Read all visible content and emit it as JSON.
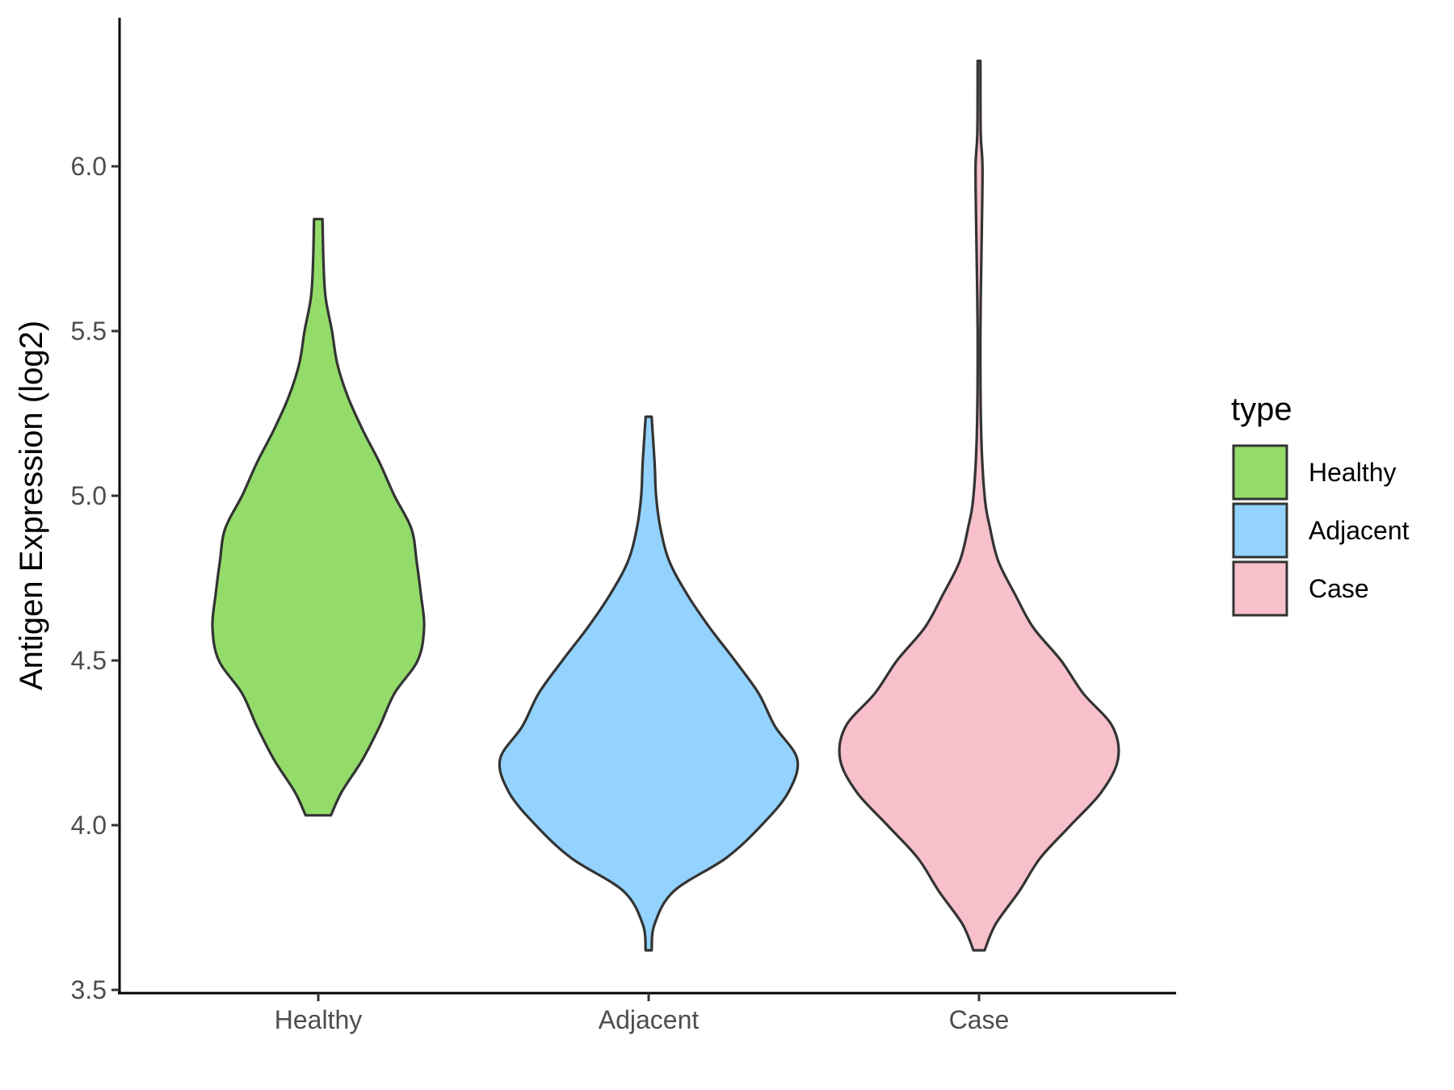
{
  "chart_data": {
    "type": "violin",
    "xlabel": "",
    "ylabel": "Antigen Expression (log2)",
    "ylim": [
      3.5,
      6.35
    ],
    "yticks": [
      "3.5",
      "4.0",
      "4.5",
      "5.0",
      "5.5",
      "6.0"
    ],
    "categories": [
      "Healthy",
      "Adjacent",
      "Case"
    ],
    "grid": false,
    "legend": {
      "title": "type",
      "position": "right",
      "entries": [
        {
          "label": "Healthy",
          "color": "#93dc6a"
        },
        {
          "label": "Adjacent",
          "color": "#93d3fe"
        },
        {
          "label": "Case",
          "color": "#f7c0cb"
        }
      ]
    },
    "series": [
      {
        "category": "Healthy",
        "color": "#93dc6a",
        "profile": [
          [
            4.03,
            0.12
          ],
          [
            4.1,
            0.22
          ],
          [
            4.2,
            0.42
          ],
          [
            4.3,
            0.58
          ],
          [
            4.4,
            0.72
          ],
          [
            4.5,
            0.94
          ],
          [
            4.6,
            1.0
          ],
          [
            4.7,
            0.97
          ],
          [
            4.8,
            0.93
          ],
          [
            4.9,
            0.88
          ],
          [
            5.0,
            0.72
          ],
          [
            5.1,
            0.58
          ],
          [
            5.2,
            0.42
          ],
          [
            5.3,
            0.28
          ],
          [
            5.4,
            0.18
          ],
          [
            5.5,
            0.13
          ],
          [
            5.6,
            0.07
          ],
          [
            5.7,
            0.05
          ],
          [
            5.84,
            0.04
          ]
        ]
      },
      {
        "category": "Adjacent",
        "color": "#93d3fe",
        "profile": [
          [
            3.62,
            0.02
          ],
          [
            3.7,
            0.04
          ],
          [
            3.8,
            0.17
          ],
          [
            3.9,
            0.52
          ],
          [
            4.0,
            0.76
          ],
          [
            4.1,
            0.94
          ],
          [
            4.2,
            1.0
          ],
          [
            4.3,
            0.85
          ],
          [
            4.4,
            0.74
          ],
          [
            4.5,
            0.58
          ],
          [
            4.6,
            0.41
          ],
          [
            4.7,
            0.26
          ],
          [
            4.8,
            0.14
          ],
          [
            4.9,
            0.08
          ],
          [
            5.0,
            0.05
          ],
          [
            5.1,
            0.04
          ],
          [
            5.24,
            0.02
          ]
        ]
      },
      {
        "category": "Case",
        "color": "#f7c0cb",
        "profile": [
          [
            3.62,
            0.04
          ],
          [
            3.7,
            0.12
          ],
          [
            3.8,
            0.29
          ],
          [
            3.9,
            0.44
          ],
          [
            4.0,
            0.66
          ],
          [
            4.1,
            0.88
          ],
          [
            4.2,
            1.0
          ],
          [
            4.3,
            0.96
          ],
          [
            4.4,
            0.75
          ],
          [
            4.5,
            0.59
          ],
          [
            4.6,
            0.39
          ],
          [
            4.7,
            0.26
          ],
          [
            4.8,
            0.14
          ],
          [
            4.9,
            0.08
          ],
          [
            5.0,
            0.04
          ],
          [
            5.2,
            0.015
          ],
          [
            5.5,
            0.01
          ],
          [
            5.8,
            0.02
          ],
          [
            6.0,
            0.025
          ],
          [
            6.1,
            0.012
          ],
          [
            6.32,
            0.01
          ]
        ]
      }
    ]
  }
}
